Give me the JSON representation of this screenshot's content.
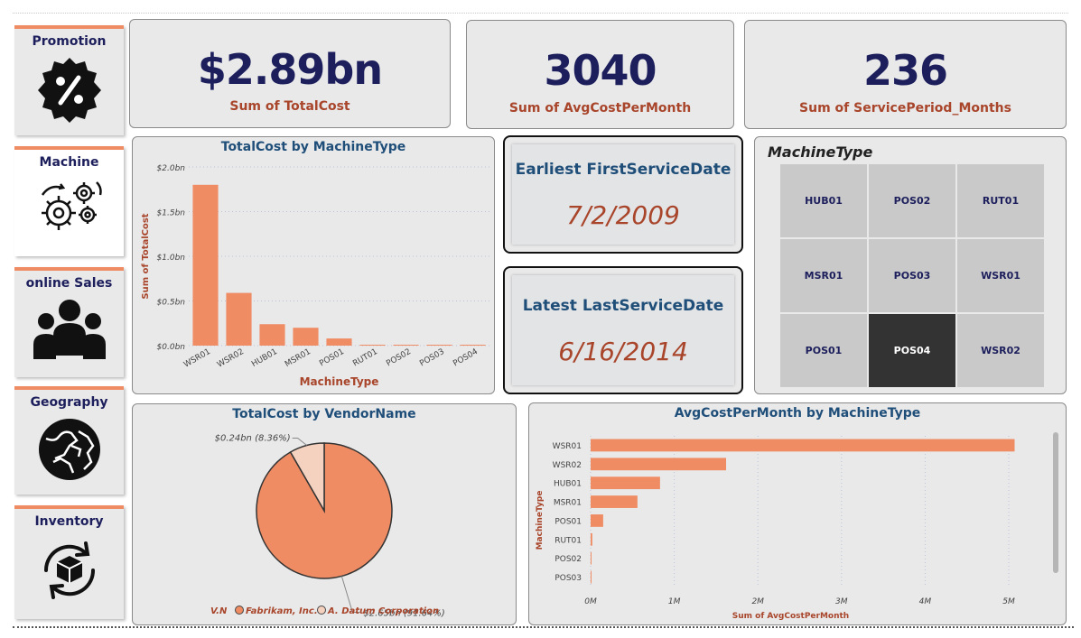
{
  "nav": [
    {
      "label": "Promotion",
      "icon": "percent-badge-icon"
    },
    {
      "label": "Machine",
      "icon": "gears-icon"
    },
    {
      "label": "online Sales",
      "icon": "people-group-icon"
    },
    {
      "label": "Geography",
      "icon": "globe-icon"
    },
    {
      "label": "Inventory",
      "icon": "box-cycle-icon"
    }
  ],
  "kpis": [
    {
      "value": "$2.89bn",
      "label": "Sum of TotalCost"
    },
    {
      "value": "3040",
      "label": "Sum of AvgCostPerMonth"
    },
    {
      "value": "236",
      "label": "Sum of ServicePeriod_Months"
    }
  ],
  "dates": {
    "earliest": {
      "title": "Earliest FirstServiceDate",
      "value": "7/2/2009"
    },
    "latest": {
      "title": "Latest LastServiceDate",
      "value": "6/16/2014"
    }
  },
  "slicer": {
    "title": "MachineType",
    "items": [
      "HUB01",
      "POS02",
      "RUT01",
      "MSR01",
      "POS03",
      "WSR01",
      "POS01",
      "POS04",
      "WSR02"
    ],
    "selected": "POS04"
  },
  "colors": {
    "accent": "#ef8c63",
    "navy": "#1d1f5c",
    "title_blue": "#1f4e79",
    "label_brown": "#a8452a",
    "pie_light": "#f5d1c0"
  },
  "chart_data": [
    {
      "type": "bar",
      "title": "TotalCost by MachineType",
      "xlabel": "MachineType",
      "ylabel": "Sum of TotalCost",
      "categories": [
        "WSR01",
        "WSR02",
        "HUB01",
        "MSR01",
        "POS01",
        "RUT01",
        "POS02",
        "POS03",
        "POS04"
      ],
      "values": [
        1.8,
        0.59,
        0.24,
        0.2,
        0.08,
        0.01,
        0.01,
        0.005,
        0.005
      ],
      "unit": "bn",
      "yticks": [
        "$0.0bn",
        "$0.5bn",
        "$1.0bn",
        "$1.5bn",
        "$2.0bn"
      ],
      "ylim": [
        0,
        2.0
      ],
      "grid": true
    },
    {
      "type": "pie",
      "title": "TotalCost by VendorName",
      "legend_title": "V.N",
      "legend_position": "bottom",
      "slices": [
        {
          "name": "Fabrikam, Inc.",
          "value": 2.65,
          "label": "$2.65bn (91.64%)",
          "color": "#ef8c63"
        },
        {
          "name": "A. Datum Corporation",
          "value": 0.24,
          "label": "$0.24bn (8.36%)",
          "color": "#f5d1c0"
        }
      ]
    },
    {
      "type": "bar",
      "orientation": "horizontal",
      "title": "AvgCostPerMonth by MachineType",
      "xlabel": "Sum of AvgCostPerMonth",
      "ylabel": "MachineType",
      "categories": [
        "WSR01",
        "WSR02",
        "HUB01",
        "MSR01",
        "POS01",
        "RUT01",
        "POS02",
        "POS03"
      ],
      "values": [
        5.07,
        1.62,
        0.83,
        0.56,
        0.15,
        0.02,
        0.01,
        0.01
      ],
      "unit": "M",
      "xticks": [
        "0M",
        "1M",
        "2M",
        "3M",
        "4M",
        "5M"
      ],
      "xlim": [
        0,
        5
      ],
      "grid": true
    }
  ]
}
